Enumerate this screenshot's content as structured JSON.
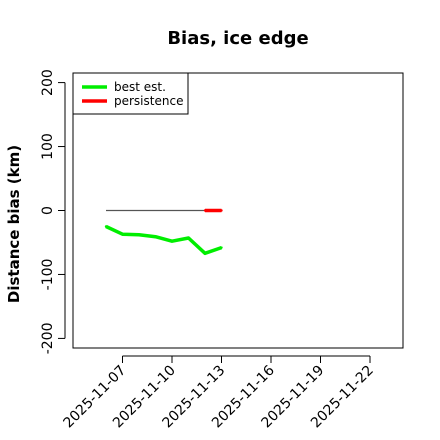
{
  "chart_data": {
    "type": "line",
    "title": "Bias, ice edge",
    "xlabel": "",
    "ylabel": "Distance bias (km)",
    "xlim": [
      "2025-11-04",
      "2025-11-24"
    ],
    "ylim": [
      -215,
      215
    ],
    "y_ticks": [
      -200,
      -100,
      0,
      100,
      200
    ],
    "x_ticks": [
      "2025-11-07",
      "2025-11-10",
      "2025-11-13",
      "2025-11-16",
      "2025-11-19",
      "2025-11-22"
    ],
    "grid": false,
    "legend_position": "top-left",
    "reference_line": {
      "y": 0,
      "x_range": [
        "2025-11-06",
        "2025-11-13"
      ],
      "color": "#555555"
    },
    "series": [
      {
        "name": "best est.",
        "color": "#00ee00",
        "x": [
          "2025-11-06",
          "2025-11-07",
          "2025-11-08",
          "2025-11-09",
          "2025-11-10",
          "2025-11-11",
          "2025-11-12",
          "2025-11-13"
        ],
        "values": [
          -25,
          -37,
          -38,
          -41,
          -48,
          -43,
          -67,
          -58
        ]
      },
      {
        "name": "persistence",
        "color": "#ff0000",
        "x": [
          "2025-11-12",
          "2025-11-13"
        ],
        "values": [
          0,
          0
        ]
      }
    ]
  }
}
